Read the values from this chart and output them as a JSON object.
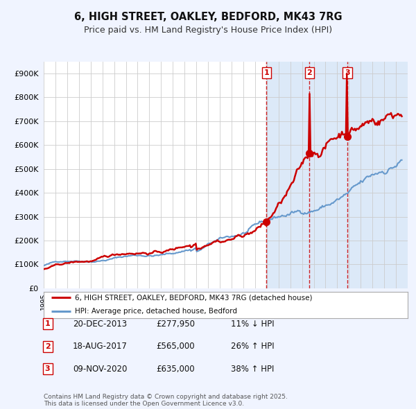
{
  "title": "6, HIGH STREET, OAKLEY, BEDFORD, MK43 7RG",
  "subtitle": "Price paid vs. HM Land Registry's House Price Index (HPI)",
  "bg_color": "#f0f4ff",
  "plot_bg": "#ffffff",
  "highlight_bg": "#dce9f8",
  "red_color": "#cc0000",
  "blue_color": "#6699cc",
  "grid_color": "#cccccc",
  "ylim": [
    0,
    950000
  ],
  "yticks": [
    0,
    100000,
    200000,
    300000,
    400000,
    500000,
    600000,
    700000,
    800000,
    900000
  ],
  "ytick_labels": [
    "£0",
    "£100K",
    "£200K",
    "£300K",
    "£400K",
    "£500K",
    "£600K",
    "£700K",
    "£800K",
    "£900K"
  ],
  "sale1_date": 2013.97,
  "sale1_price": 277950,
  "sale2_date": 2017.63,
  "sale2_price": 565000,
  "sale3_date": 2020.86,
  "sale3_price": 635000,
  "legend_line1": "6, HIGH STREET, OAKLEY, BEDFORD, MK43 7RG (detached house)",
  "legend_line2": "HPI: Average price, detached house, Bedford",
  "table_rows": [
    {
      "num": "1",
      "date": "20-DEC-2013",
      "price": "£277,950",
      "hpi": "11% ↓ HPI"
    },
    {
      "num": "2",
      "date": "18-AUG-2017",
      "price": "£565,000",
      "hpi": "26% ↑ HPI"
    },
    {
      "num": "3",
      "date": "09-NOV-2020",
      "price": "£635,000",
      "hpi": "38% ↑ HPI"
    }
  ],
  "footnote": "Contains HM Land Registry data © Crown copyright and database right 2025.\nThis data is licensed under the Open Government Licence v3.0.",
  "xstart": 1995,
  "xend": 2026
}
